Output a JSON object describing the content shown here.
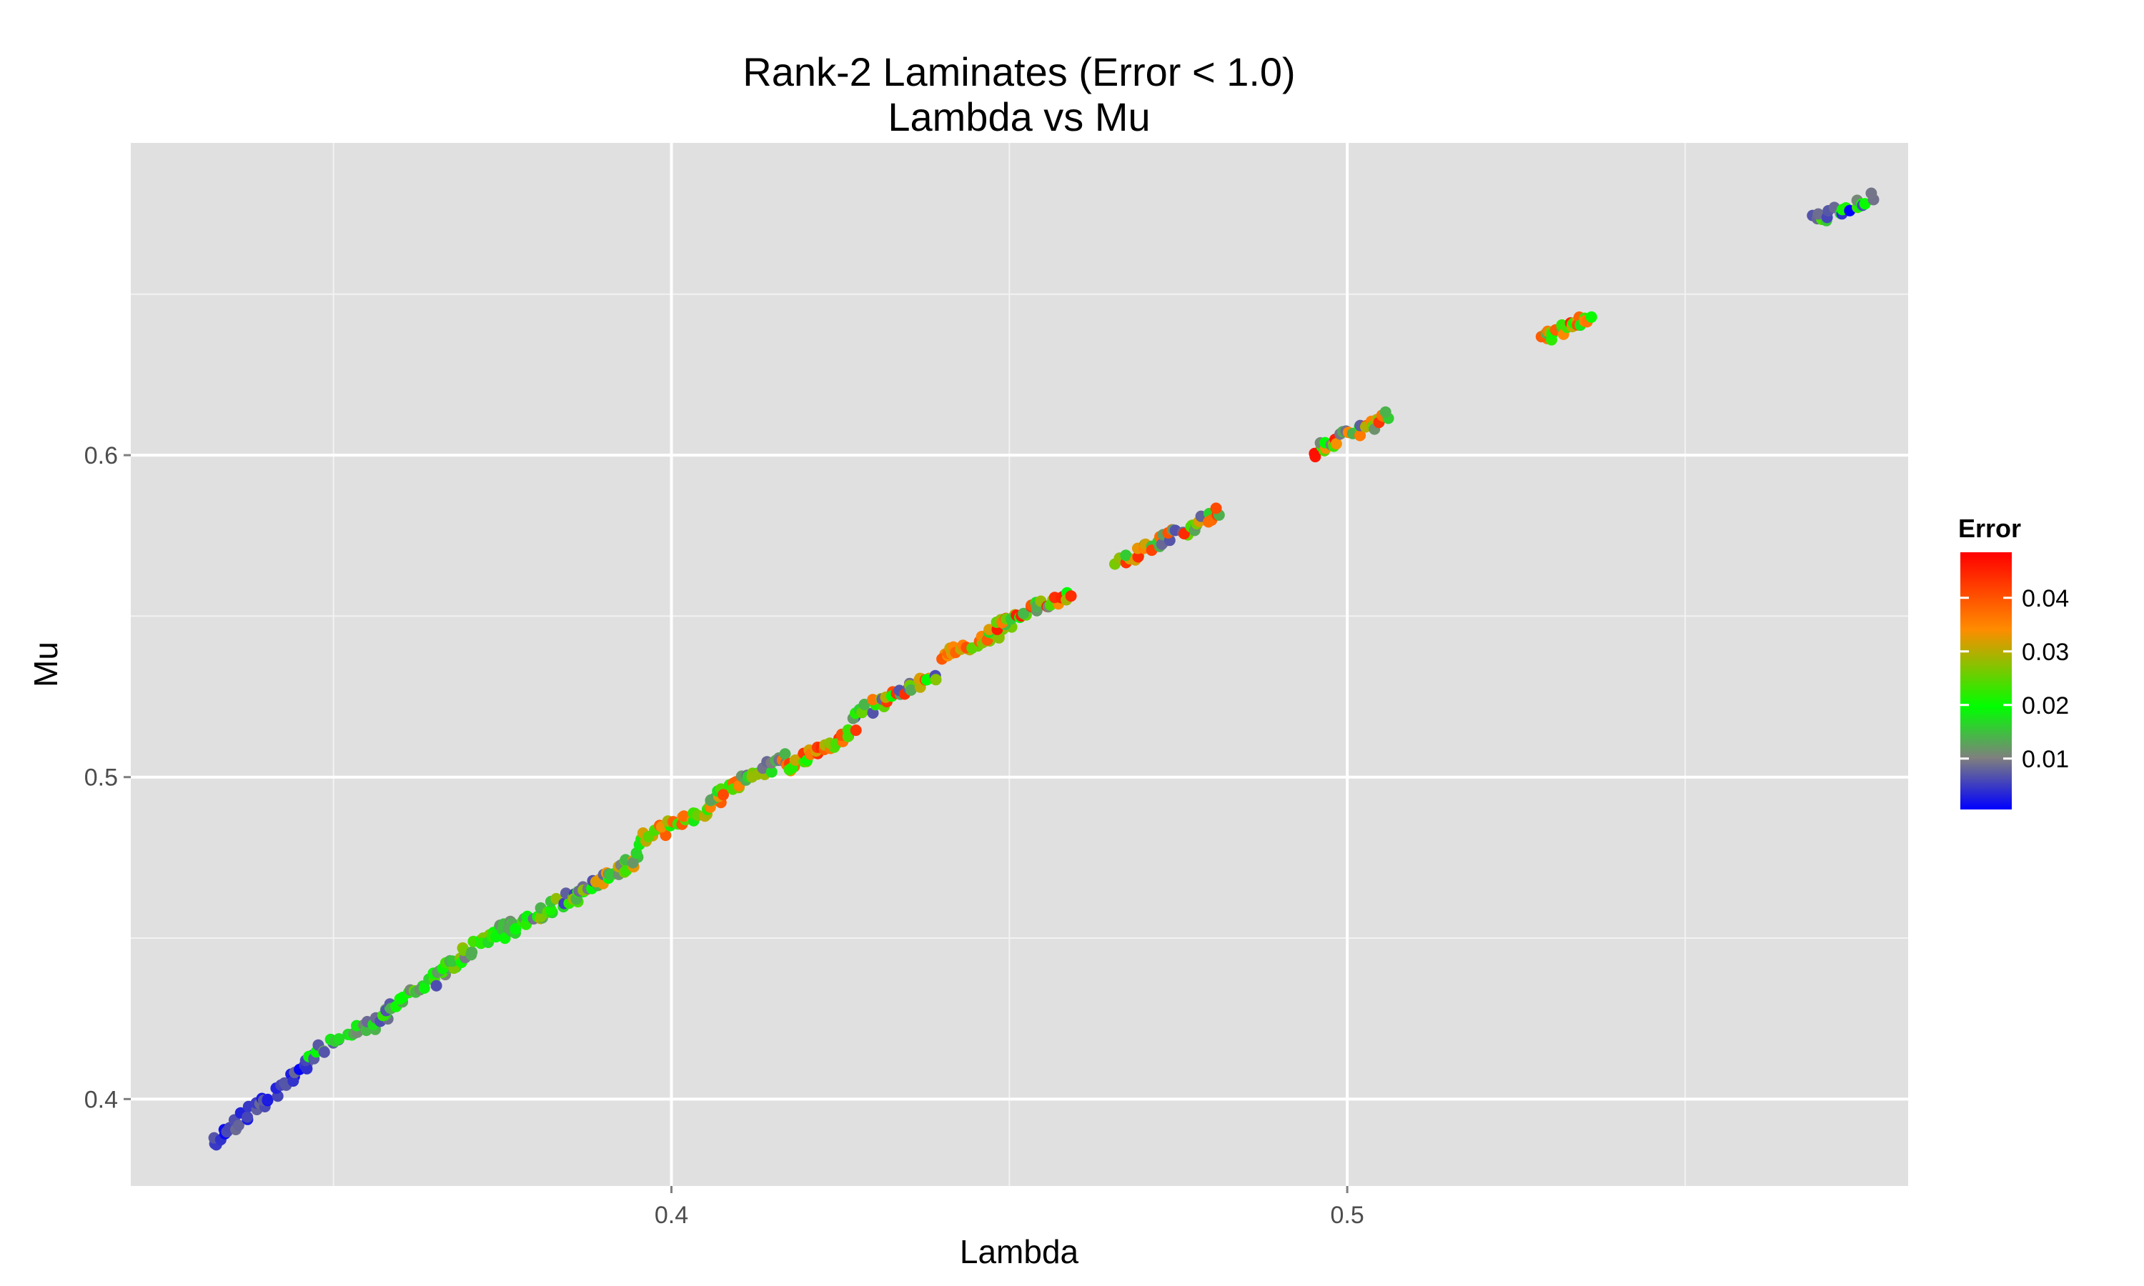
{
  "chart_data": {
    "type": "scatter",
    "title": "Rank-2 Laminates (Error < 1.0)",
    "subtitle": "Lambda vs Mu",
    "xlabel": "Lambda",
    "ylabel": "Mu",
    "xlim": [
      0.32,
      0.583
    ],
    "ylim": [
      0.373,
      0.697
    ],
    "xticks": [
      0.4,
      0.5
    ],
    "xtick_labels": [
      "0.4",
      "0.5"
    ],
    "x_minor_ticks": [
      0.35,
      0.45,
      0.55
    ],
    "yticks": [
      0.4,
      0.5,
      0.6
    ],
    "ytick_labels": [
      "0.4",
      "0.5",
      "0.6"
    ],
    "y_minor_ticks": [
      0.45,
      0.55,
      0.65
    ],
    "grid": true,
    "background": "#e0e0e0",
    "legend": {
      "title": "Error",
      "placement": "right",
      "range": [
        0.0005,
        0.0485
      ],
      "ticks": [
        0.01,
        0.02,
        0.03,
        0.04
      ],
      "tick_labels": [
        "0.01",
        "0.02",
        "0.03",
        "0.04"
      ],
      "colors": [
        "#0000ff",
        "#7f7f7f",
        "#00ff00",
        "#ff8c00",
        "#ff0000"
      ],
      "color_stops": [
        0,
        0.2,
        0.4,
        0.7,
        1
      ]
    },
    "clusters": [
      {
        "x0": 0.332,
        "y0": 0.386,
        "x1": 0.347,
        "y1": 0.412,
        "n": 40,
        "err": [
          0.0005,
          0.009
        ]
      },
      {
        "x0": 0.346,
        "y0": 0.413,
        "x1": 0.358,
        "y1": 0.426,
        "n": 26,
        "err": [
          0.005,
          0.02
        ]
      },
      {
        "x0": 0.357,
        "y0": 0.427,
        "x1": 0.368,
        "y1": 0.441,
        "n": 28,
        "err": [
          0.006,
          0.026
        ]
      },
      {
        "x0": 0.366,
        "y0": 0.44,
        "x1": 0.376,
        "y1": 0.455,
        "n": 30,
        "err": [
          0.008,
          0.03
        ]
      },
      {
        "x0": 0.375,
        "y0": 0.451,
        "x1": 0.387,
        "y1": 0.465,
        "n": 32,
        "err": [
          0.005,
          0.032
        ]
      },
      {
        "x0": 0.386,
        "y0": 0.463,
        "x1": 0.395,
        "y1": 0.475,
        "n": 32,
        "err": [
          0.006,
          0.036
        ]
      },
      {
        "x0": 0.395,
        "y0": 0.48,
        "x1": 0.407,
        "y1": 0.492,
        "n": 34,
        "err": [
          0.01,
          0.04
        ]
      },
      {
        "x0": 0.406,
        "y0": 0.494,
        "x1": 0.417,
        "y1": 0.506,
        "n": 34,
        "err": [
          0.008,
          0.042
        ]
      },
      {
        "x0": 0.417,
        "y0": 0.503,
        "x1": 0.427,
        "y1": 0.514,
        "n": 34,
        "err": [
          0.02,
          0.045
        ]
      },
      {
        "x0": 0.427,
        "y0": 0.519,
        "x1": 0.439,
        "y1": 0.532,
        "n": 36,
        "err": [
          0.005,
          0.045
        ]
      },
      {
        "x0": 0.44,
        "y0": 0.537,
        "x1": 0.45,
        "y1": 0.546,
        "n": 30,
        "err": [
          0.025,
          0.042
        ]
      },
      {
        "x0": 0.447,
        "y0": 0.546,
        "x1": 0.459,
        "y1": 0.557,
        "n": 36,
        "err": [
          0.008,
          0.047
        ]
      },
      {
        "x0": 0.466,
        "y0": 0.567,
        "x1": 0.481,
        "y1": 0.582,
        "n": 42,
        "err": [
          0.006,
          0.047
        ]
      },
      {
        "x0": 0.495,
        "y0": 0.601,
        "x1": 0.506,
        "y1": 0.612,
        "n": 36,
        "err": [
          0.006,
          0.047
        ]
      },
      {
        "x0": 0.529,
        "y0": 0.636,
        "x1": 0.536,
        "y1": 0.643,
        "n": 24,
        "err": [
          0.012,
          0.045
        ]
      },
      {
        "x0": 0.569,
        "y0": 0.673,
        "x1": 0.578,
        "y1": 0.68,
        "n": 22,
        "err": [
          0.0005,
          0.024
        ]
      }
    ]
  }
}
